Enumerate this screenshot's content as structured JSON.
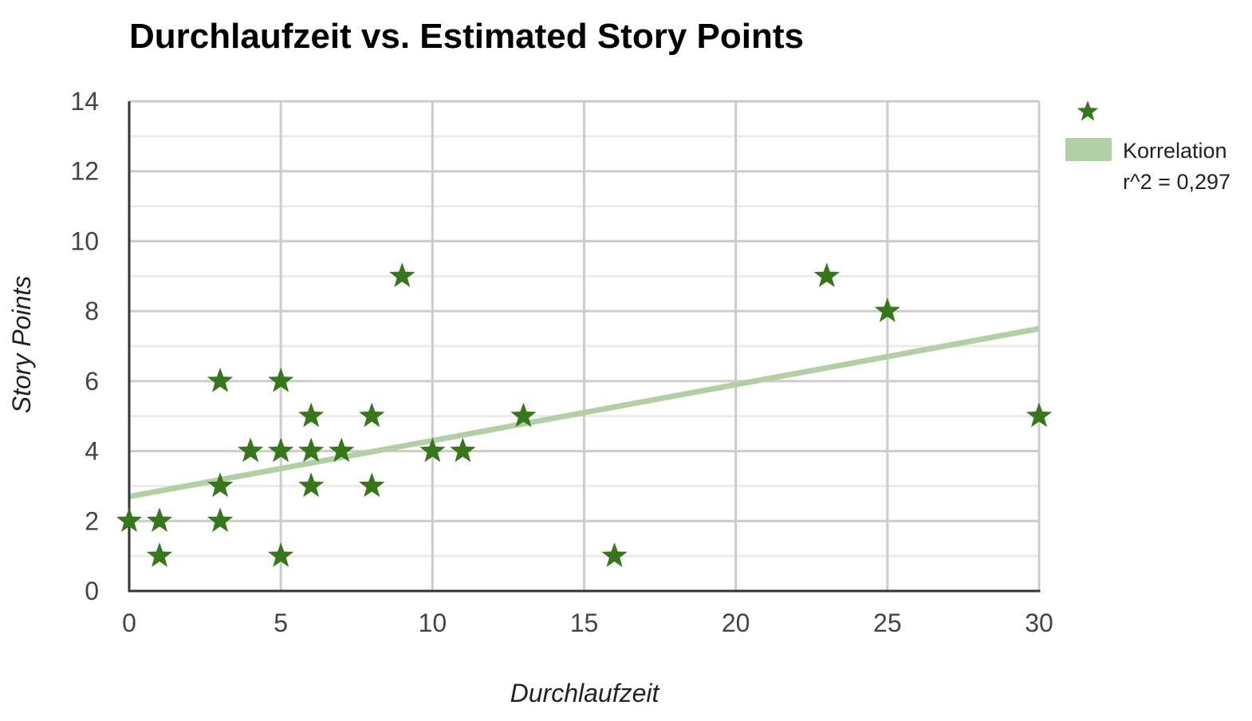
{
  "chart_data": {
    "type": "scatter",
    "title": "Durchlaufzeit vs. Estimated Story Points",
    "xlabel": "Durchlaufzeit",
    "ylabel": "Story Points",
    "xlim": [
      0,
      30
    ],
    "ylim": [
      0,
      14
    ],
    "x_ticks": [
      "0",
      "5",
      "10",
      "15",
      "20",
      "25",
      "30"
    ],
    "y_ticks": [
      "0",
      "2",
      "4",
      "6",
      "8",
      "10",
      "12",
      "14"
    ],
    "grid": true,
    "minor_grid": true,
    "legend_position": "right",
    "series": [
      {
        "marker": "star",
        "color": "#38761d",
        "points": [
          {
            "x": 0,
            "y": 2
          },
          {
            "x": 1,
            "y": 2
          },
          {
            "x": 1,
            "y": 1
          },
          {
            "x": 3,
            "y": 6
          },
          {
            "x": 3,
            "y": 3
          },
          {
            "x": 3,
            "y": 2
          },
          {
            "x": 4,
            "y": 4
          },
          {
            "x": 5,
            "y": 6
          },
          {
            "x": 5,
            "y": 4
          },
          {
            "x": 5,
            "y": 1
          },
          {
            "x": 6,
            "y": 5
          },
          {
            "x": 6,
            "y": 4
          },
          {
            "x": 6,
            "y": 3
          },
          {
            "x": 7,
            "y": 4
          },
          {
            "x": 8,
            "y": 5
          },
          {
            "x": 8,
            "y": 3
          },
          {
            "x": 9,
            "y": 9
          },
          {
            "x": 10,
            "y": 4
          },
          {
            "x": 11,
            "y": 4
          },
          {
            "x": 13,
            "y": 5
          },
          {
            "x": 16,
            "y": 1
          },
          {
            "x": 23,
            "y": 9
          },
          {
            "x": 25,
            "y": 8
          },
          {
            "x": 30,
            "y": 5
          }
        ]
      }
    ],
    "trendline": {
      "label_line1": "Korrelation",
      "label_line2": "r^2 = 0,297",
      "color": "#b3cfa5",
      "start": {
        "x": 0,
        "y": 2.7
      },
      "end": {
        "x": 30,
        "y": 7.5
      }
    }
  }
}
